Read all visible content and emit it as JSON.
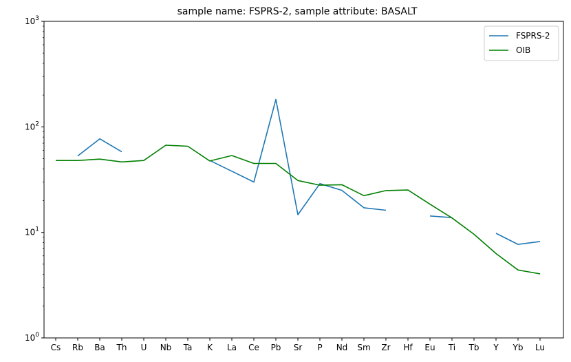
{
  "chart_data": {
    "type": "line",
    "title": "sample name: FSPRS-2, sample attribute: BASALT",
    "xlabel": "",
    "ylabel": "",
    "yscale": "log",
    "ylim": [
      1,
      1000
    ],
    "y_ticks": [
      {
        "value": 1,
        "base": "10",
        "exp": "0"
      },
      {
        "value": 10,
        "base": "10",
        "exp": "1"
      },
      {
        "value": 100,
        "base": "10",
        "exp": "2"
      },
      {
        "value": 1000,
        "base": "10",
        "exp": "3"
      }
    ],
    "categories": [
      "Cs",
      "Rb",
      "Ba",
      "Th",
      "U",
      "Nb",
      "Ta",
      "K",
      "La",
      "Ce",
      "Pb",
      "Sr",
      "P",
      "Nd",
      "Sm",
      "Zr",
      "Hf",
      "Eu",
      "Ti",
      "Tb",
      "Y",
      "Yb",
      "Lu"
    ],
    "legend_position": "top-right",
    "grid": false,
    "series": [
      {
        "name": "FSPRS-2",
        "color": "#1f77b4",
        "values": [
          null,
          53,
          77,
          58,
          null,
          null,
          null,
          48,
          38,
          30,
          182,
          14.7,
          29,
          25,
          17.1,
          16.2,
          null,
          14.3,
          13.8,
          null,
          9.8,
          7.7,
          8.2
        ]
      },
      {
        "name": "OIB",
        "color": "#008000",
        "values": [
          48,
          48,
          49.5,
          46.5,
          48,
          67,
          65.5,
          47.5,
          53.5,
          45,
          45,
          31,
          28,
          28.3,
          22.3,
          24.9,
          25.2,
          18.5,
          13.7,
          9.6,
          6.3,
          4.4,
          4.05
        ]
      }
    ]
  }
}
